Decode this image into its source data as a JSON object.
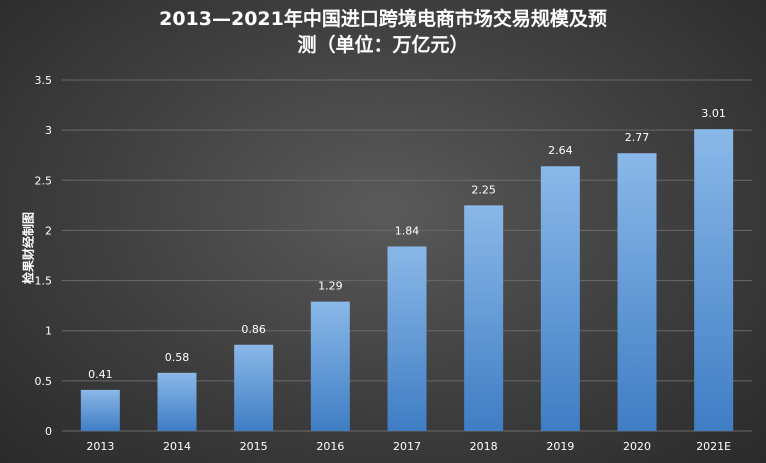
{
  "chart_data": {
    "type": "bar",
    "title_line1": "2013—2021年中国进口跨境电商市场交易规模及预",
    "title_line2": "测（单位：万亿元）",
    "xlabel": "",
    "ylabel": "检果财经制图",
    "categories": [
      "2013",
      "2014",
      "2015",
      "2016",
      "2017",
      "2018",
      "2019",
      "2020",
      "2021E"
    ],
    "values": [
      0.41,
      0.58,
      0.86,
      1.29,
      1.84,
      2.25,
      2.64,
      2.77,
      3.01
    ],
    "data_labels": [
      "0.41",
      "0.58",
      "0.86",
      "1.29",
      "1.84",
      "2.25",
      "2.64",
      "2.77",
      "3.01"
    ],
    "ylim": [
      0,
      3.5
    ],
    "yticks": [
      "0",
      "0.5",
      "1",
      "1.5",
      "2",
      "2.5",
      "3",
      "3.5"
    ],
    "grid": true,
    "legend": "none",
    "colors": {
      "bar_top": "#8ab8e8",
      "bar_bottom": "#3f7dc4",
      "grid": "#6a6a6a",
      "text": "#ffffff"
    }
  }
}
